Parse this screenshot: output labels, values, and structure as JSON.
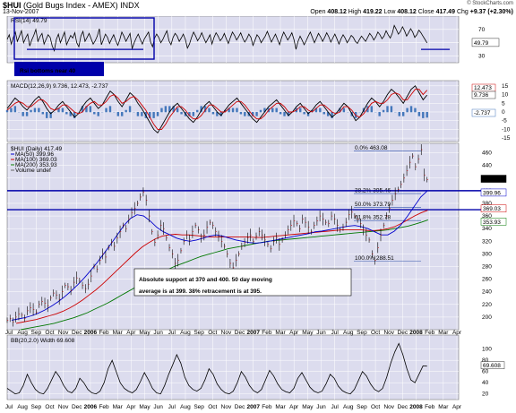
{
  "header": {
    "symbol": "$HUI",
    "name": "(Gold Bugs Index - AMEX)",
    "index_tag": "INDX",
    "date": "13-Nov-2007",
    "brand": "© StockCharts.com",
    "open_label": "Open",
    "open": "408.12",
    "high_label": "High",
    "high": "419.22",
    "low_label": "Low",
    "low": "408.12",
    "close_label": "Close",
    "close": "417.49",
    "chg_label": "Chg",
    "chg": "+9.37 (+2.30%)"
  },
  "chart_data": [
    {
      "type": "line",
      "panel": "rsi",
      "legend": "RSI(14) 49.79",
      "series": [
        {
          "name": "RSI(14)",
          "values": [
            55,
            62,
            48,
            58,
            66,
            52,
            60,
            68,
            50,
            57,
            63,
            45,
            54,
            61,
            70,
            52,
            59,
            64,
            48,
            55,
            62,
            58,
            45,
            38,
            55,
            63,
            50,
            58,
            66,
            47,
            54,
            61,
            57,
            65,
            50,
            44,
            60,
            67,
            52,
            58,
            64,
            56,
            48,
            53,
            60,
            71,
            47,
            55,
            63,
            58,
            49,
            56,
            62,
            53,
            46,
            55,
            66,
            60,
            52,
            58,
            64,
            41,
            50,
            57,
            63,
            55,
            48,
            56,
            61,
            66,
            51,
            44,
            57,
            63,
            58,
            50,
            55,
            62,
            68,
            53,
            47,
            58,
            64,
            60,
            52,
            57,
            63,
            55,
            42,
            48,
            58,
            66,
            60,
            53,
            58,
            65,
            57,
            50,
            56,
            62,
            48,
            58,
            65,
            60,
            53,
            57,
            64,
            56,
            49,
            58,
            66,
            61,
            54,
            59,
            65,
            57,
            51,
            56,
            63,
            58,
            46,
            54,
            62,
            58,
            50,
            55,
            60,
            67,
            59,
            51,
            57,
            63,
            55,
            47,
            58,
            66,
            60,
            54,
            59,
            65,
            55,
            40,
            52,
            60,
            54,
            47,
            53,
            60,
            66,
            58,
            50,
            57,
            64,
            59,
            52,
            58,
            65,
            59,
            51,
            57,
            63,
            56,
            48,
            56,
            62,
            57,
            50,
            55,
            61,
            58,
            52,
            49,
            55,
            60,
            56,
            52,
            58,
            64,
            60,
            54,
            59,
            66,
            62,
            56,
            60,
            68,
            62,
            57,
            64,
            76,
            70,
            63,
            67,
            74,
            68,
            60,
            65,
            71,
            66,
            58,
            62,
            69,
            65,
            60,
            55,
            49.79
          ]
        }
      ],
      "ylim": [
        20,
        90
      ],
      "ticks": [
        30,
        50,
        70
      ],
      "value_label": "49.79",
      "annotation": "Rsi bottoms near 40"
    },
    {
      "type": "line",
      "panel": "macd",
      "legend": "MACD(12,26,9) 9.736, 12.473, -2.737",
      "series": [
        {
          "name": "MACD",
          "values": [
            2,
            5,
            8,
            6,
            3,
            1,
            4,
            7,
            9,
            6,
            2,
            -1,
            1,
            4,
            6,
            3,
            0,
            -3,
            -1,
            3,
            6,
            8,
            5,
            2,
            4,
            8,
            12,
            10,
            6,
            3,
            7,
            11,
            9,
            5,
            2,
            -2,
            -6,
            -10,
            -12,
            -8,
            -4,
            0,
            3,
            5,
            2,
            -1,
            -4,
            -6,
            -3,
            1,
            4,
            6,
            3,
            0,
            -2,
            1,
            4,
            6,
            8,
            5,
            2,
            -1,
            -4,
            -6,
            -3,
            0,
            3,
            5,
            7,
            4,
            1,
            -2,
            0,
            3,
            5,
            2,
            -1,
            1,
            4,
            6,
            3,
            0,
            -3,
            -1,
            2,
            5,
            3,
            -1,
            -5,
            -3,
            1,
            5,
            8,
            6,
            3,
            6,
            10,
            13,
            11,
            8,
            5,
            9,
            13,
            15,
            11,
            7,
            9.736
          ]
        },
        {
          "name": "Signal",
          "values": [
            1,
            3,
            5,
            6,
            5,
            3,
            3,
            5,
            7,
            7,
            5,
            2,
            1,
            2,
            4,
            4,
            2,
            0,
            -1,
            0,
            3,
            5,
            6,
            4,
            4,
            6,
            9,
            10,
            8,
            5,
            6,
            8,
            9,
            7,
            4,
            1,
            -3,
            -7,
            -10,
            -10,
            -7,
            -3,
            0,
            3,
            3,
            1,
            -2,
            -4,
            -4,
            -2,
            1,
            4,
            4,
            2,
            0,
            0,
            2,
            4,
            6,
            6,
            4,
            1,
            -2,
            -4,
            -4,
            -2,
            1,
            3,
            5,
            5,
            3,
            0,
            0,
            1,
            3,
            3,
            1,
            0,
            2,
            4,
            4,
            2,
            0,
            -1,
            0,
            3,
            3,
            1,
            -2,
            -3,
            -1,
            2,
            5,
            6,
            5,
            5,
            7,
            10,
            11,
            10,
            7,
            7,
            10,
            13,
            13,
            10,
            12.473
          ]
        }
      ],
      "ylim": [
        -17,
        18
      ],
      "ticks": [
        -15,
        -10,
        -5,
        0,
        5,
        10,
        15
      ],
      "value_labels": [
        "12.473",
        "9.736",
        "-2.737"
      ]
    },
    {
      "type": "line",
      "panel": "price",
      "legend": [
        "$HUI (Daily) 417.49",
        "MA(50) 399.96",
        "MA(100) 369.03",
        "MA(200) 353.93",
        "Volume undef"
      ],
      "series": [
        {
          "name": "$HUI (Daily)",
          "values": [
            195,
            198,
            192,
            200,
            205,
            203,
            198,
            210,
            215,
            212,
            208,
            220,
            225,
            222,
            218,
            230,
            238,
            235,
            228,
            240,
            250,
            248,
            242,
            255,
            262,
            258,
            250,
            245,
            252,
            265,
            280,
            276,
            290,
            300,
            295,
            310,
            318,
            312,
            325,
            335,
            345,
            340,
            355,
            365,
            372,
            380,
            390,
            398,
            385,
            360,
            335,
            318,
            330,
            345,
            340,
            325,
            310,
            300,
            285,
            290,
            305,
            320,
            330,
            322,
            335,
            345,
            338,
            325,
            330,
            342,
            350,
            345,
            335,
            328,
            320,
            312,
            300,
            285,
            278,
            290,
            300,
            312,
            318,
            325,
            330,
            320,
            328,
            335,
            330,
            322,
            315,
            308,
            320,
            325,
            315,
            322,
            330,
            338,
            345,
            352,
            348,
            340,
            355,
            350,
            342,
            335,
            345,
            352,
            360,
            355,
            350,
            348,
            360,
            355,
            345,
            338,
            342,
            350,
            362,
            366,
            360,
            355,
            348,
            338,
            330,
            322,
            300,
            290,
            310,
            330,
            345,
            360,
            372,
            385,
            395,
            402,
            410,
            420,
            432,
            445,
            455,
            438,
            450,
            465,
            425,
            417.49
          ]
        },
        {
          "name": "MA(50)",
          "values": [
            195,
            197,
            199,
            202,
            206,
            211,
            217,
            224,
            232,
            241,
            251,
            262,
            274,
            287,
            301,
            315,
            330,
            345,
            356,
            362,
            360,
            352,
            342,
            335,
            330,
            325,
            322,
            320,
            322,
            325,
            328,
            330,
            328,
            325,
            322,
            320,
            318,
            317,
            318,
            320,
            322,
            324,
            326,
            328,
            330,
            332,
            335,
            336,
            338,
            340,
            342,
            344,
            345,
            343,
            340,
            335,
            330,
            330,
            336,
            346,
            360,
            375,
            390,
            399.96
          ]
        },
        {
          "name": "MA(100)",
          "values": [
            190,
            192,
            194,
            196,
            199,
            202,
            205,
            209,
            214,
            220,
            227,
            235,
            243,
            252,
            262,
            272,
            282,
            292,
            302,
            311,
            318,
            324,
            328,
            330,
            331,
            330,
            330,
            329,
            328,
            327,
            327,
            327,
            327,
            327,
            327,
            327,
            326,
            326,
            327,
            328,
            329,
            330,
            331,
            332,
            333,
            334,
            335,
            336,
            337,
            338,
            338,
            338,
            338,
            337,
            337,
            338,
            340,
            343,
            348,
            354,
            360,
            365,
            369.03
          ]
        },
        {
          "name": "MA(200)",
          "values": [
            180,
            182,
            184,
            186,
            188,
            190,
            193,
            196,
            199,
            203,
            207,
            212,
            217,
            222,
            228,
            234,
            240,
            246,
            252,
            258,
            264,
            270,
            275,
            280,
            284,
            288,
            292,
            296,
            299,
            302,
            305,
            308,
            310,
            312,
            314,
            316,
            318,
            320,
            321,
            322,
            323,
            324,
            325,
            326,
            327,
            328,
            329,
            330,
            331,
            332,
            333,
            334,
            335,
            336,
            337,
            338,
            340,
            342,
            344,
            347,
            350,
            353.93
          ]
        }
      ],
      "ylim": [
        180,
        475
      ],
      "ticks": [
        200,
        220,
        240,
        260,
        280,
        300,
        320,
        340,
        360,
        380,
        400,
        420,
        440,
        460
      ],
      "support_levels": [
        400,
        370
      ],
      "fib_levels": [
        {
          "label": "0.0% 463.08",
          "value": 463.08
        },
        {
          "label": "38.2% 395.46",
          "value": 395.46
        },
        {
          "label": "50.0% 373.79",
          "value": 373.79
        },
        {
          "label": "61.8% 352.78",
          "value": 352.78
        },
        {
          "label": "100.0% 288.51",
          "value": 288.51
        }
      ],
      "value_labels": [
        "417.49",
        "399.96",
        "369.03",
        "353.93"
      ],
      "annotation": [
        "Absolute support at 370 and 400. 50 day moving",
        "average is at 399. 38% retracement is at 395."
      ]
    },
    {
      "type": "line",
      "panel": "bb_width",
      "legend": "BB(20,2.0) Width 69.608",
      "series": [
        {
          "name": "BB Width",
          "values": [
            30,
            25,
            20,
            22,
            35,
            55,
            40,
            28,
            22,
            20,
            30,
            45,
            60,
            50,
            35,
            25,
            22,
            30,
            48,
            40,
            28,
            22,
            20,
            25,
            40,
            65,
            80,
            60,
            40,
            30,
            25,
            22,
            28,
            42,
            58,
            45,
            30,
            22,
            20,
            35,
            55,
            72,
            90,
            75,
            50,
            35,
            28,
            25,
            30,
            45,
            65,
            55,
            38,
            28,
            22,
            20,
            25,
            40,
            60,
            50,
            35,
            26,
            22,
            28,
            45,
            62,
            52,
            38,
            28,
            24,
            22,
            30,
            48,
            58,
            45,
            32,
            25,
            22,
            25,
            38,
            55,
            48,
            34,
            26,
            22,
            20,
            28,
            44,
            60,
            52,
            38,
            28,
            24,
            30,
            50,
            75,
            95,
            110,
            90,
            65,
            45,
            40,
            55,
            70,
            69.608
          ]
        }
      ],
      "ylim": [
        10,
        125
      ],
      "ticks": [
        20,
        40,
        60,
        80,
        100
      ],
      "value_label": "69.608"
    }
  ],
  "x_axis": {
    "months": [
      "Jul",
      "Aug",
      "Sep",
      "Oct",
      "Nov",
      "Dec",
      "2006",
      "Feb",
      "Mar",
      "Apr",
      "May",
      "Jun",
      "Jul",
      "Aug",
      "Sep",
      "Oct",
      "Nov",
      "Dec",
      "2007",
      "Feb",
      "Mar",
      "Apr",
      "May",
      "Jun",
      "Jul",
      "Aug",
      "Sep",
      "Oct",
      "Nov",
      "Dec",
      "2008",
      "Feb",
      "Mar",
      "Apr"
    ],
    "bold": [
      "2006",
      "2007",
      "2008"
    ]
  },
  "colors": {
    "panel_bg": "#dcdcee",
    "grid": "#ffffff",
    "price": "#000000",
    "ma50": "#0000cc",
    "ma100": "#cc0000",
    "ma200": "#007700",
    "macd": "#000000",
    "signal": "#cc0000",
    "histogram": "#4477bb",
    "annotation": "#0000aa"
  }
}
